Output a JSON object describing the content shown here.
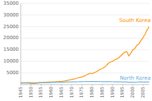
{
  "chart_data": {
    "type": "line",
    "x": [
      1945,
      1946,
      1947,
      1948,
      1949,
      1950,
      1951,
      1952,
      1953,
      1954,
      1955,
      1956,
      1957,
      1958,
      1959,
      1960,
      1961,
      1962,
      1963,
      1964,
      1965,
      1966,
      1967,
      1968,
      1969,
      1970,
      1971,
      1972,
      1973,
      1974,
      1975,
      1976,
      1977,
      1978,
      1979,
      1980,
      1981,
      1982,
      1983,
      1984,
      1985,
      1986,
      1987,
      1988,
      1989,
      1990,
      1991,
      1992,
      1993,
      1994,
      1995,
      1996,
      1997,
      1998,
      1999,
      2000,
      2001,
      2002,
      2003,
      2004,
      2005,
      2006,
      2007,
      2008
    ],
    "series": [
      {
        "name": "South Korea",
        "color": "#FF8C00",
        "values": [
          770,
          780,
          800,
          820,
          840,
          700,
          710,
          730,
          780,
          830,
          880,
          910,
          960,
          1020,
          1060,
          1100,
          1130,
          1170,
          1230,
          1280,
          1340,
          1480,
          1600,
          1800,
          2000,
          2170,
          2340,
          2520,
          2900,
          3100,
          3200,
          3600,
          4000,
          4500,
          4900,
          4700,
          5100,
          5500,
          6000,
          6600,
          6900,
          7500,
          8200,
          9200,
          9700,
          10000,
          10600,
          11000,
          11500,
          12300,
          13200,
          14000,
          14200,
          12300,
          13600,
          15000,
          15600,
          17000,
          17600,
          19100,
          20300,
          21800,
          23700,
          25000
        ]
      },
      {
        "name": "North Korea",
        "color": "#6aaed6",
        "values": [
          600,
          610,
          620,
          650,
          670,
          400,
          450,
          500,
          600,
          700,
          750,
          800,
          830,
          860,
          880,
          900,
          920,
          940,
          960,
          980,
          1000,
          1020,
          1050,
          1080,
          1100,
          1120,
          1140,
          1160,
          1180,
          1200,
          1230,
          1260,
          1280,
          1300,
          1320,
          1300,
          1290,
          1280,
          1270,
          1260,
          1250,
          1240,
          1230,
          1220,
          1200,
          1180,
          1160,
          1140,
          1130,
          1120,
          1100,
          1080,
          1050,
          1000,
          980,
          1000,
          1020,
          1040,
          1050,
          1060,
          1070,
          1080,
          1090,
          1100
        ]
      }
    ],
    "annotations": [
      {
        "text": "South Korea",
        "x": 2003,
        "y": 27000
      },
      {
        "text": "North Korea",
        "x": 1998,
        "y": 2200
      }
    ],
    "ylim": [
      0,
      35000
    ],
    "yticks": [
      5000,
      10000,
      15000,
      20000,
      25000,
      30000,
      35000
    ],
    "xlim": [
      1945,
      2008
    ],
    "xticks": [
      1945,
      1950,
      1955,
      1960,
      1965,
      1970,
      1975,
      1980,
      1985,
      1990,
      1995,
      2000,
      2005
    ],
    "grid": true
  }
}
